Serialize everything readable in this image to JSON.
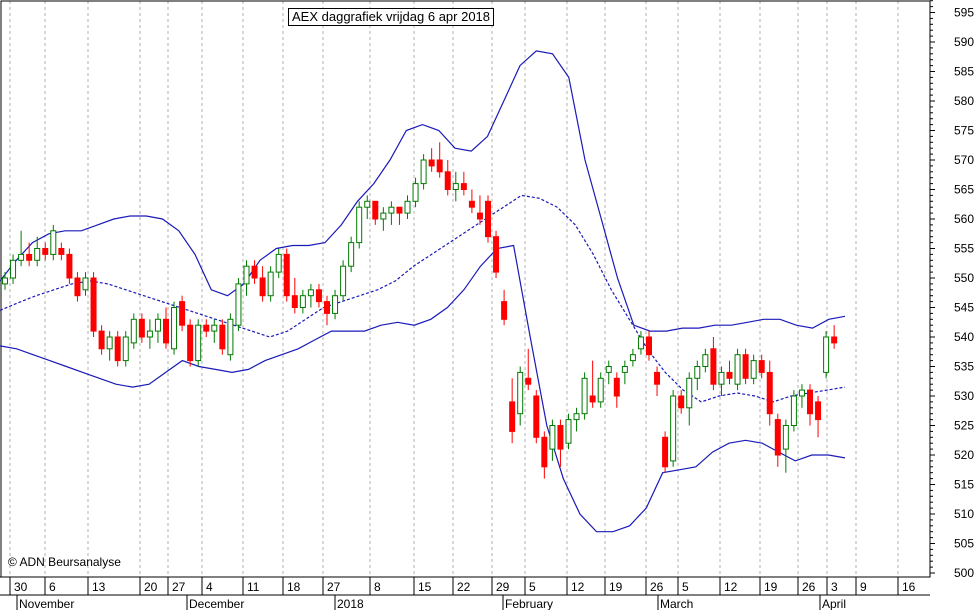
{
  "title": "AEX daggrafiek vrijdag 6 apr 2018",
  "copyright": "© ADN Beursanalyse",
  "colors": {
    "up": "#007a00",
    "down": "#ff0000",
    "band": "#1a1ab8",
    "grid": "#b0b0b0"
  },
  "chart_data": {
    "type": "candlestick",
    "title": "AEX daggrafiek vrijdag 6 apr 2018",
    "ylim": [
      500,
      598
    ],
    "y_ticks": [
      500,
      505,
      510,
      515,
      520,
      525,
      530,
      535,
      540,
      545,
      550,
      555,
      560,
      565,
      570,
      575,
      580,
      585,
      590,
      595
    ],
    "x_ticks": [
      "30",
      "6",
      "13",
      "20",
      "27",
      "4",
      "11",
      "18",
      "27",
      "8",
      "15",
      "22",
      "29",
      "5",
      "12",
      "19",
      "26",
      "5",
      "12",
      "19",
      "26",
      "3",
      "9",
      "16"
    ],
    "months": [
      "November",
      "December",
      "2018",
      "February",
      "March",
      "April"
    ],
    "grid": true,
    "candles": [
      [
        549,
        551,
        548,
        550
      ],
      [
        550,
        554,
        549,
        553
      ],
      [
        553,
        558,
        552,
        554
      ],
      [
        554,
        556,
        552,
        553
      ],
      [
        553,
        557,
        552,
        555
      ],
      [
        555,
        556,
        553,
        554
      ],
      [
        554,
        559,
        553,
        558
      ],
      [
        555,
        556,
        553,
        554
      ],
      [
        554,
        555,
        549,
        550
      ],
      [
        550,
        551,
        546,
        547
      ],
      [
        548,
        551,
        547,
        550
      ],
      [
        550,
        551,
        540,
        541
      ],
      [
        541,
        542,
        537,
        538
      ],
      [
        538,
        541,
        536,
        540
      ],
      [
        540,
        541,
        535,
        536
      ],
      [
        536,
        541,
        535,
        540
      ],
      [
        539,
        544,
        538,
        543
      ],
      [
        543,
        544,
        539,
        540
      ],
      [
        540,
        543,
        538,
        541
      ],
      [
        541,
        544,
        539,
        543
      ],
      [
        543,
        545,
        538,
        539
      ],
      [
        538,
        546,
        537,
        545
      ],
      [
        546,
        547,
        541,
        542
      ],
      [
        542,
        543,
        535,
        536
      ],
      [
        536,
        543,
        535,
        542
      ],
      [
        542,
        543,
        540,
        541
      ],
      [
        541,
        543,
        539,
        542
      ],
      [
        542,
        543,
        537,
        538
      ],
      [
        537,
        544,
        536,
        543
      ],
      [
        542,
        550,
        541,
        549
      ],
      [
        549,
        553,
        547,
        552
      ],
      [
        552,
        553,
        549,
        550
      ],
      [
        550,
        552,
        546,
        547
      ],
      [
        547,
        552,
        546,
        551
      ],
      [
        551,
        555,
        550,
        554
      ],
      [
        554,
        555,
        546,
        547
      ],
      [
        547,
        550,
        544,
        545
      ],
      [
        545,
        548,
        544,
        547
      ],
      [
        547,
        549,
        545,
        548
      ],
      [
        548,
        549,
        545,
        546
      ],
      [
        546,
        547,
        542,
        544
      ],
      [
        544,
        548,
        543,
        547
      ],
      [
        547,
        553,
        546,
        552
      ],
      [
        552,
        557,
        551,
        556
      ],
      [
        556,
        563,
        555,
        562
      ],
      [
        562,
        564,
        560,
        563
      ],
      [
        563,
        563,
        559,
        560
      ],
      [
        560,
        562,
        558,
        561
      ],
      [
        561,
        563,
        559,
        562
      ],
      [
        562,
        562,
        559,
        561
      ],
      [
        561,
        564,
        560,
        563
      ],
      [
        563,
        567,
        562,
        566
      ],
      [
        566,
        571,
        565,
        570
      ],
      [
        570,
        572,
        568,
        569
      ],
      [
        570,
        573,
        567,
        568
      ],
      [
        568,
        570,
        564,
        565
      ],
      [
        565,
        568,
        563,
        566
      ],
      [
        566,
        568,
        564,
        565
      ],
      [
        563,
        565,
        561,
        562
      ],
      [
        561,
        564,
        559,
        560
      ],
      [
        563,
        564,
        556,
        557
      ],
      [
        557,
        558,
        550,
        551
      ],
      [
        546,
        548,
        542,
        543
      ],
      [
        529,
        533,
        522,
        524
      ],
      [
        527,
        535,
        525,
        534
      ],
      [
        533,
        538,
        531,
        532
      ],
      [
        530,
        531,
        522,
        523
      ],
      [
        523,
        524,
        516,
        518
      ],
      [
        521,
        526,
        519,
        525
      ],
      [
        525,
        526,
        518,
        521
      ],
      [
        522,
        527,
        521,
        526
      ],
      [
        526,
        528,
        524,
        527
      ],
      [
        527,
        534,
        526,
        533
      ],
      [
        530,
        536,
        528,
        529
      ],
      [
        529,
        534,
        528,
        533
      ],
      [
        534,
        536,
        532,
        535
      ],
      [
        533,
        534,
        528,
        530
      ],
      [
        534,
        536,
        532,
        535
      ],
      [
        536,
        538,
        535,
        537
      ],
      [
        538,
        541,
        537,
        540
      ],
      [
        540,
        541,
        536,
        537
      ],
      [
        534,
        535,
        530,
        532
      ],
      [
        523,
        524,
        517,
        518
      ],
      [
        519,
        531,
        518,
        530
      ],
      [
        530,
        531,
        527,
        528
      ],
      [
        528,
        534,
        525,
        533
      ],
      [
        533,
        536,
        531,
        535
      ],
      [
        535,
        538,
        534,
        537
      ],
      [
        538,
        540,
        531,
        532
      ],
      [
        532,
        535,
        530,
        534
      ],
      [
        534,
        536,
        532,
        533
      ],
      [
        532,
        538,
        531,
        537
      ],
      [
        537,
        538,
        532,
        533
      ],
      [
        533,
        537,
        532,
        536
      ],
      [
        536,
        537,
        533,
        534
      ],
      [
        534,
        536,
        525,
        527
      ],
      [
        526,
        527,
        518,
        520
      ],
      [
        521,
        526,
        517,
        525
      ],
      [
        525,
        531,
        524,
        530
      ],
      [
        530,
        532,
        528,
        531
      ],
      [
        531,
        532,
        525,
        527
      ],
      [
        529,
        530,
        523,
        526
      ],
      [
        534,
        541,
        533,
        540
      ],
      [
        540,
        542,
        538,
        539
      ]
    ],
    "series": [
      {
        "values": [
          544.5,
          545.8,
          547.0,
          548.0,
          549.0,
          549.5,
          549.0,
          548.0,
          547.0,
          546.0,
          545.0,
          544.0,
          543.0,
          542.0,
          541.0,
          540.0,
          541.0,
          543.0,
          545.0,
          546.0,
          547.0,
          548.0,
          549.5,
          552.0,
          554.0,
          556.0,
          558.0,
          560.0,
          562.0,
          564.0,
          563.5,
          562.0,
          559.0,
          554.0,
          548.0,
          543.0,
          538.0,
          534.0,
          531.0,
          529.0,
          530.0,
          530.5,
          530.0,
          529.0,
          530.0,
          530.5,
          531.0,
          531.5
        ]
      },
      {
        "values": [
          538.5,
          538.0,
          537.0,
          536.0,
          535.0,
          534.0,
          533.0,
          532.0,
          531.5,
          532.0,
          534.0,
          536.0,
          535.0,
          534.5,
          534.0,
          534.5,
          536.0,
          537.0,
          538.0,
          539.5,
          541.0,
          541.0,
          541.0,
          542.0,
          542.5,
          542.0,
          543.0,
          545.0,
          548.0,
          552.0,
          555.0,
          555.5,
          540.0,
          525.0,
          516.0,
          510.0,
          507.0,
          507.0,
          508.0,
          511.0,
          517.0,
          517.5,
          518.0,
          520.5,
          522.0,
          522.5,
          522.0,
          520.5,
          519.0,
          520.0,
          520.0,
          519.5
        ]
      },
      {
        "values": [
          549.5,
          553.0,
          556.0,
          557.5,
          558.0,
          558.0,
          559.0,
          560.0,
          560.5,
          560.5,
          560.0,
          558.0,
          554.0,
          548.0,
          547.0,
          549.0,
          553.0,
          555.0,
          555.5,
          555.5,
          556.0,
          559.0,
          563.0,
          566.0,
          570.0,
          575.0,
          576.0,
          575.0,
          572.0,
          571.5,
          574.0,
          580.0,
          586.0,
          588.5,
          588.0,
          584.0,
          570.0,
          560.0,
          550.0,
          542.0,
          541.0,
          541.0,
          541.5,
          541.5,
          542.0,
          542.0,
          542.5,
          543.0,
          543.0,
          542.0,
          541.5,
          543.0,
          543.5
        ]
      }
    ]
  }
}
